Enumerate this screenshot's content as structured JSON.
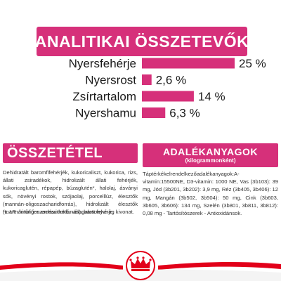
{
  "analytical": {
    "title": "ANALITIKAI ÖSSZETEVŐK"
  },
  "chart_data": {
    "type": "bar",
    "categories": [
      "Nyersfehérje",
      "Nyersrost",
      "Zsírtartalom",
      "Nyershamu"
    ],
    "values": [
      25,
      2.6,
      14,
      6.3
    ],
    "value_labels": [
      "25 %",
      "2,6 %",
      "14 %",
      "6,3 %"
    ],
    "title": "ANALITIKAI ÖSSZETEVŐK",
    "xlabel": "",
    "ylabel": "",
    "xlim": [
      0,
      25
    ],
    "orientation": "horizontal",
    "grid": false,
    "bar_color": "#d6307a"
  },
  "composition": {
    "title": "ÖSSZETÉTEL",
    "text": "Dehidratált baromfifehérjék, kukoricaliszt, kukorica, rizs, állati zsiradékok, hidrolizált állati fehérjék, kukoricaglutén, répapép, búzaglutén*, halolaj, ásványi sók, növényi rostok, szójaolaj, porcelllúz, élesztők (mannán-oligoszacharidforrás), hidrolizált élesztők (mannán-oligoszacharidokforrás), bársonyvirág kivonat.",
    "note": "*L.I.P.: kitűnően emészthető, válogatott fehérje."
  },
  "additives": {
    "title": "ADALÉKANYAGOK",
    "subtitle": "(kilogrammonként)",
    "text": "Táptérkékelrendelkezőadalékanyagok:A-vitamin:15500NE, D3-vitamin: 1000 NE, Vas (3b103): 39 mg, Jód (3b201, 3b202): 3,9 mg, Réz (3b405, 3b406): 12 mg, Mangán (3b502, 3b504): 50 mg, Cink (3b603, 3b605, 3b606): 134 mg, Szelén (3b801, 3b811, 3b812): 0,08 mg - Tartósítószerek - Antioxidánsok."
  },
  "colors": {
    "accent": "#d6307a",
    "footer_red": "#e2001a"
  },
  "footer": {
    "logo_icon": "crown-icon"
  }
}
